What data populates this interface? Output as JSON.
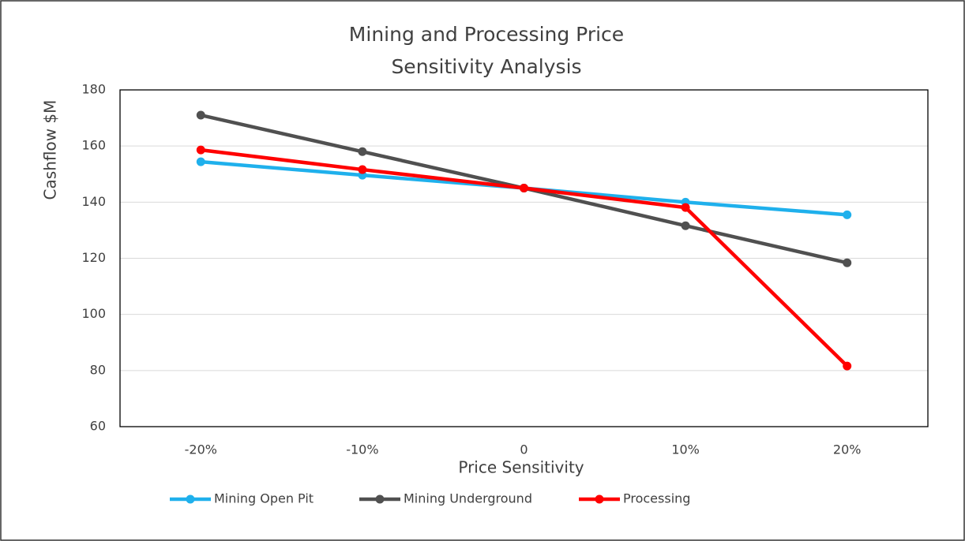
{
  "chart_data": {
    "type": "line",
    "title": [
      "Mining and Processing Price",
      "Sensitivity Analysis"
    ],
    "x_label": "Price Sensitivity",
    "y_label": "Cashflow $M",
    "categories": [
      "-20%",
      "-10%",
      "0",
      "10%",
      "20%"
    ],
    "series": [
      {
        "name": "Mining Open Pit",
        "color": "#1fb0ec",
        "values": [
          154.4,
          149.6,
          145,
          140,
          135.5
        ]
      },
      {
        "name": "Mining Underground",
        "color": "#505050",
        "values": [
          171,
          158,
          145,
          131.6,
          118.4
        ]
      },
      {
        "name": "Processing",
        "color": "#ff0000",
        "values": [
          158.6,
          151.6,
          145,
          138.1,
          81.6
        ]
      }
    ],
    "ylim": [
      60,
      180
    ],
    "yticks": [
      60,
      80,
      100,
      120,
      140,
      160,
      180
    ],
    "grid": true,
    "legend": "bottom"
  }
}
